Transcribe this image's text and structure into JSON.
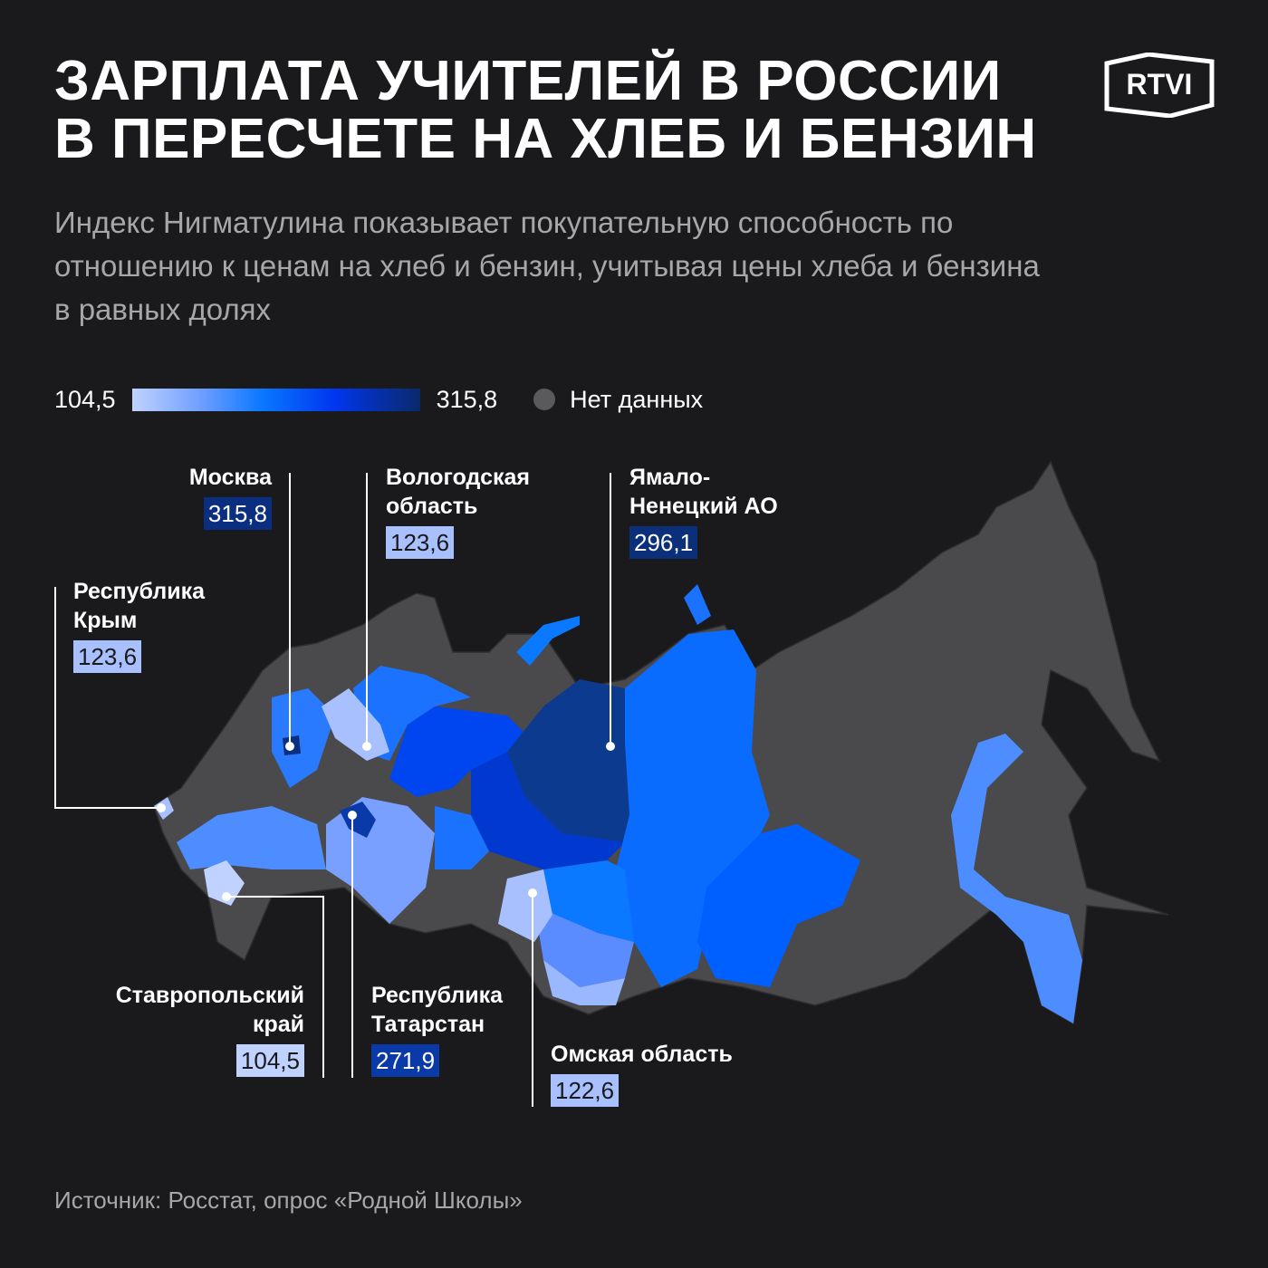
{
  "header": {
    "title_line1": "ЗАРПЛАТА УЧИТЕЛЕЙ В РОССИИ",
    "title_line2": "В ПЕРЕСЧЕТЕ НА ХЛЕБ И БЕНЗИН",
    "subtitle": "Индекс Нигматулина показывает покупательную способность по отношению к ценам на хлеб и бензин, учитывая цены хлеба и бензина в равных долях",
    "logo": "RTVI"
  },
  "legend": {
    "min": "104,5",
    "max": "315,8",
    "no_data": "Нет данных",
    "colors": {
      "min": "#c0d2ff",
      "mid": "#0a78ff",
      "max": "#0a2a6a",
      "no_data": "#4a4a4c"
    }
  },
  "callouts": [
    {
      "name": "Москва",
      "value": "315,8",
      "color": "#0a2f80"
    },
    {
      "name": "Вологодская область",
      "value": "123,6",
      "color": "#a9c0ff"
    },
    {
      "name": "Ямало-Ненецкий АО",
      "value": "296,1",
      "color": "#0b2f78"
    },
    {
      "name": "Республика Крым",
      "value": "123,6",
      "color": "#a9c0ff"
    },
    {
      "name": "Ставропольский край",
      "value": "104,5",
      "color": "#c0d2ff"
    },
    {
      "name": "Республика Татарстан",
      "value": "271,9",
      "color": "#0a3aa8"
    },
    {
      "name": "Омская область",
      "value": "122,6",
      "color": "#a9c0ff"
    }
  ],
  "source": "Источник: Росстат, опрос «Родной Школы»"
}
